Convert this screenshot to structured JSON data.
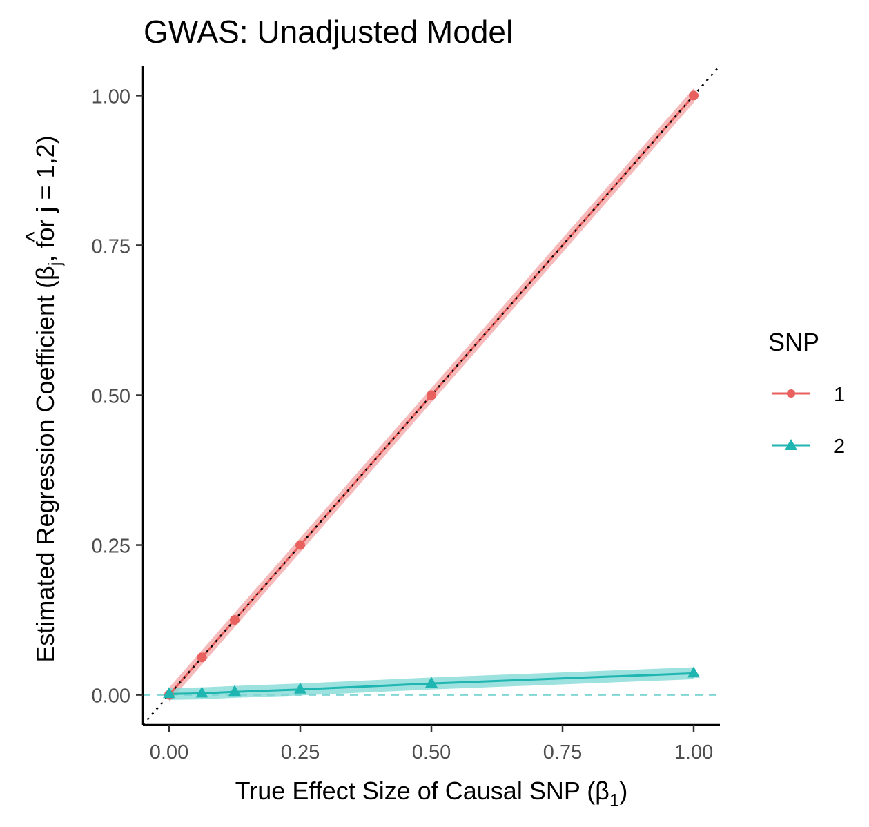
{
  "chart_data": {
    "type": "line",
    "title": "GWAS: Unadjusted Model",
    "xlabel": "True Effect Size of Causal SNP (β",
    "xlabel_sub": "1",
    "xlabel_close": ")",
    "ylabel": "Estimated Regression Coefficient (β",
    "ylabel_hat": "^",
    "ylabel_sub": "j",
    "ylabel_tail": ", for j = 1,2)",
    "xlim": [
      -0.05,
      1.05
    ],
    "ylim": [
      -0.05,
      1.05
    ],
    "x_ticks": [
      0,
      0.25,
      0.5,
      0.75,
      1
    ],
    "x_tick_labels": [
      "0.00",
      "0.25",
      "0.50",
      "0.75",
      "1.00"
    ],
    "y_ticks": [
      0,
      0.25,
      0.5,
      0.75,
      1
    ],
    "y_tick_labels": [
      "0.00",
      "0.25",
      "0.50",
      "0.75",
      "1.00"
    ],
    "grid": false,
    "legend": {
      "title": "SNP",
      "position": "right"
    },
    "reference_lines": [
      {
        "kind": "identity",
        "style": "dotted",
        "color": "#000000"
      },
      {
        "kind": "horizontal",
        "y": 0,
        "style": "dashed",
        "color": "#7fd6d3"
      }
    ],
    "series": [
      {
        "name": "1",
        "color": "#e8615f",
        "band_color": "#f4a3a3",
        "marker": "circle",
        "x": [
          0,
          0.0625,
          0.125,
          0.25,
          0.5,
          1
        ],
        "y": [
          0,
          0.0625,
          0.125,
          0.25,
          0.5,
          1
        ],
        "band_halfwidth": 0.012
      },
      {
        "name": "2",
        "color": "#1fb5b1",
        "band_color": "#7dd8d5",
        "marker": "triangle",
        "x": [
          0,
          0.0625,
          0.125,
          0.25,
          0.5,
          1
        ],
        "y": [
          0.0015,
          0.0025,
          0.005,
          0.009,
          0.019,
          0.036
        ],
        "band_halfwidth": 0.01
      }
    ]
  }
}
